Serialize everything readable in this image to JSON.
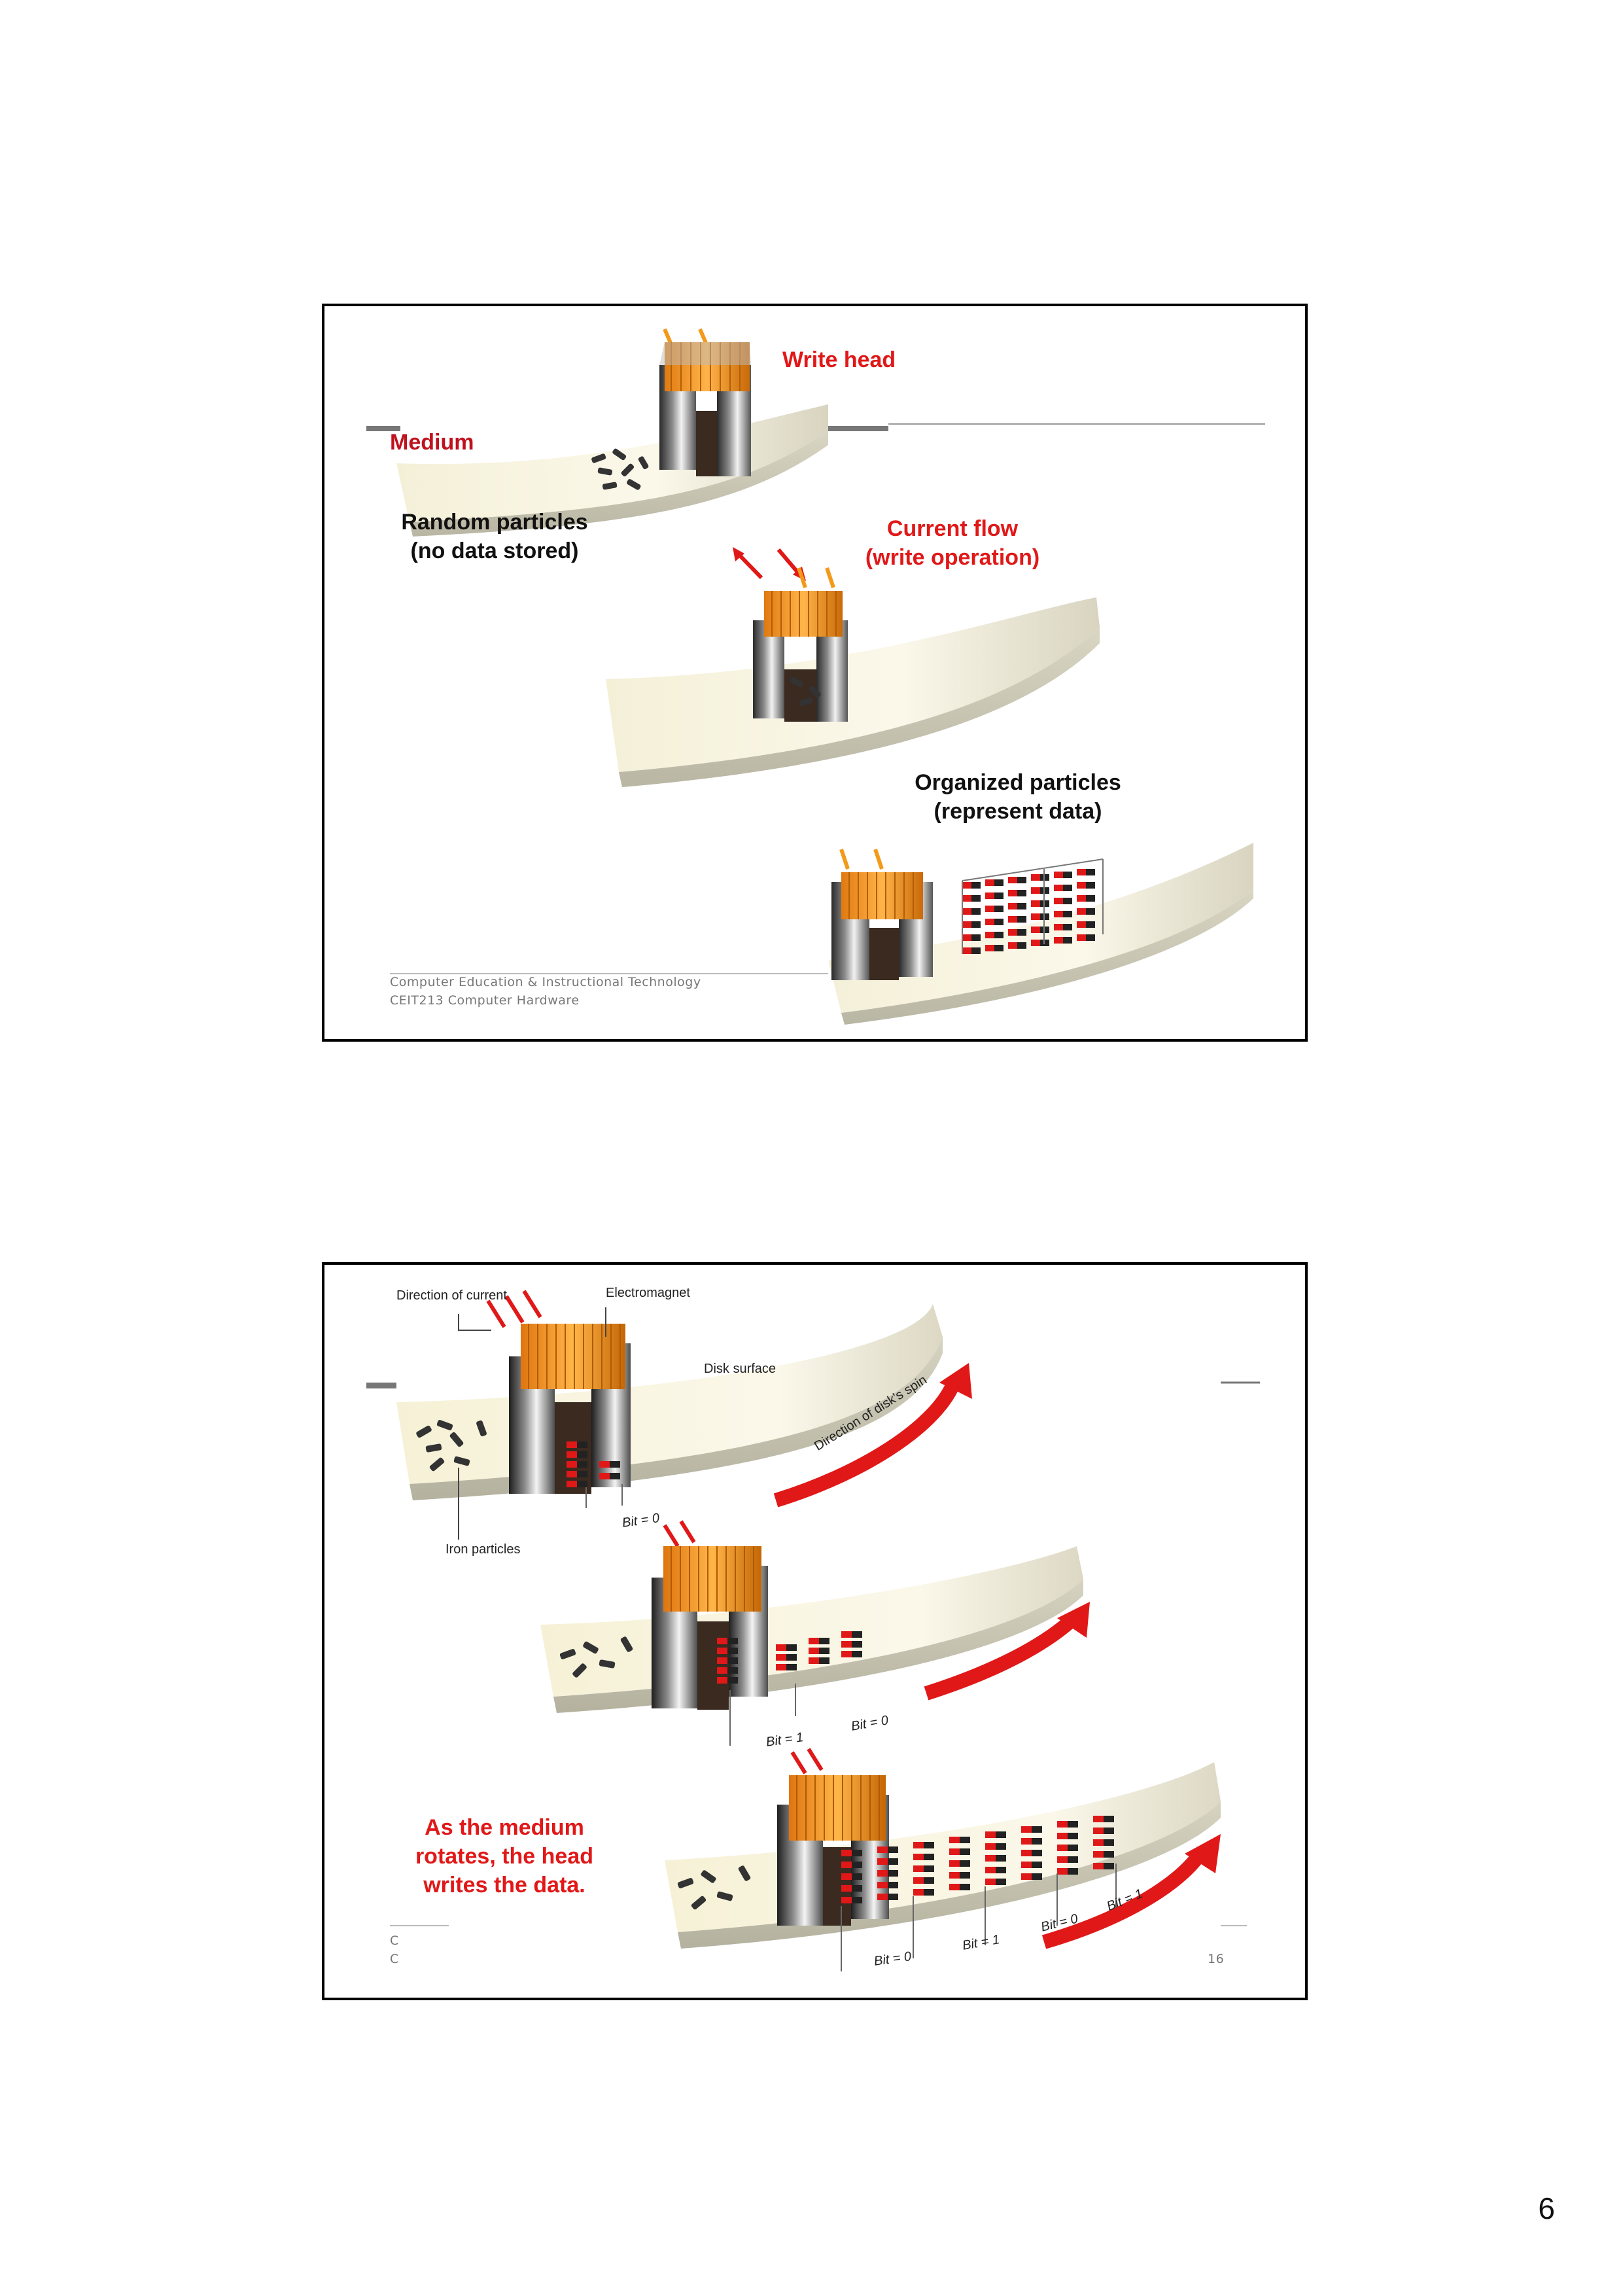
{
  "slide1": {
    "write_head": "Write head",
    "medium": "Medium",
    "random_particles": [
      "Random particles",
      "(no data stored)"
    ],
    "current_flow": [
      "Current flow",
      "(write operation)"
    ],
    "organized_particles": [
      "Organized particles",
      "(represent data)"
    ],
    "footer": [
      "Computer Education & Instructional Technology",
      "CEIT213 Computer Hardware"
    ]
  },
  "slide2": {
    "direction_of_current": "Direction of current",
    "electromagnet": "Electromagnet",
    "disk_surface": "Disk surface",
    "direction_of_spin": "Direction of disk's spin",
    "iron_particles": "Iron particles",
    "bits_row1": [
      "Bit = 0"
    ],
    "bits_row2": [
      "Bit = 1",
      "Bit = 0"
    ],
    "bits_row3": [
      "Bit = 0",
      "Bit = 1",
      "Bit = 0",
      "Bit = 1"
    ],
    "caption": [
      "As the medium",
      "rotates, the head",
      "writes the data."
    ],
    "footer_fragment": [
      "C",
      "C"
    ],
    "footer_page_fragment": "16"
  },
  "page_number": "6",
  "colors": {
    "red": "#e11818",
    "dark_red": "#c0111f",
    "border": "#000000"
  }
}
